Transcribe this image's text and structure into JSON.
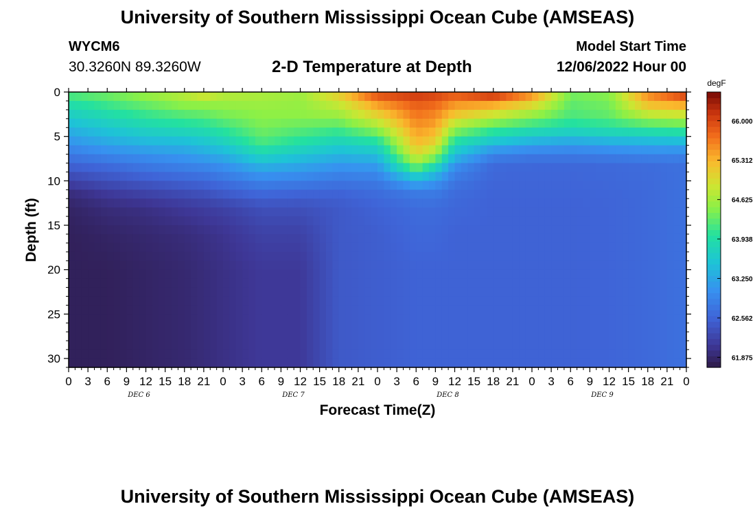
{
  "header": {
    "title": "University of Southern Mississippi Ocean Cube (AMSEAS)",
    "station_id": "WYCM6",
    "station_coords": "30.3260N  89.3260W",
    "plot_title": "2-D Temperature at Depth",
    "model_start_label": "Model Start Time",
    "model_start_value": "12/06/2022 Hour 00"
  },
  "footer": {
    "title": "University of Southern Mississippi Ocean Cube (AMSEAS)"
  },
  "chart_data": {
    "type": "heatmap",
    "title": "2-D Temperature at Depth",
    "xlabel": "Forecast Time(Z)",
    "ylabel": "Depth (ft)",
    "x_tick_labels": [
      "0",
      "3",
      "6",
      "9",
      "12",
      "15",
      "18",
      "21",
      "0",
      "3",
      "6",
      "9",
      "12",
      "15",
      "18",
      "21",
      "0",
      "3",
      "6",
      "9",
      "12",
      "15",
      "18",
      "21",
      "0",
      "3",
      "6",
      "9",
      "12",
      "15",
      "18",
      "21",
      "0"
    ],
    "day_labels": [
      "DEC 6",
      "DEC 7",
      "DEC 8",
      "DEC 9"
    ],
    "x_range_hours": [
      0,
      96
    ],
    "y_range_ft": [
      0,
      31
    ],
    "y_ticks": [
      0,
      5,
      10,
      15,
      20,
      25,
      30
    ],
    "y_inverted": true,
    "colorbar": {
      "unit": "degF",
      "tick_labels": [
        "66.000",
        "65.312",
        "64.625",
        "63.938",
        "63.250",
        "62.562",
        "61.875"
      ],
      "tick_values": [
        66.0,
        65.312,
        64.625,
        63.938,
        63.25,
        62.562,
        61.875
      ],
      "range": [
        61.7,
        66.5
      ]
    },
    "key_hours": [
      0,
      6,
      12,
      18,
      21,
      24,
      30,
      36,
      42,
      48,
      54,
      57,
      60,
      66,
      72,
      78,
      84,
      90,
      96
    ],
    "depth_levels_ft": [
      0,
      1,
      2.5,
      4,
      5.5,
      7,
      8.5,
      10,
      11.5,
      13,
      16,
      20,
      25,
      31
    ],
    "temperature_profiles": [
      [
        64.3,
        64.0,
        63.7,
        63.4,
        63.1,
        62.8,
        62.5,
        62.2,
        61.95,
        61.85,
        61.8,
        61.8,
        61.8,
        61.8
      ],
      [
        64.4,
        64.2,
        63.9,
        63.6,
        63.3,
        62.95,
        62.6,
        62.35,
        62.1,
        61.95,
        61.85,
        61.8,
        61.8,
        61.8
      ],
      [
        64.6,
        64.4,
        64.1,
        63.8,
        63.45,
        63.05,
        62.75,
        62.45,
        62.2,
        62.0,
        61.9,
        61.85,
        61.85,
        61.85
      ],
      [
        64.8,
        64.6,
        64.25,
        63.9,
        63.5,
        63.15,
        62.85,
        62.55,
        62.3,
        62.1,
        61.95,
        61.9,
        61.9,
        61.9
      ],
      [
        65.1,
        64.6,
        64.3,
        63.95,
        63.6,
        63.25,
        62.9,
        62.6,
        62.35,
        62.15,
        62.0,
        61.95,
        61.95,
        61.95
      ],
      [
        64.8,
        64.6,
        64.4,
        64.1,
        63.75,
        63.35,
        63.0,
        62.7,
        62.45,
        62.2,
        62.05,
        62.0,
        62.0,
        62.0
      ],
      [
        64.7,
        64.6,
        64.5,
        64.4,
        64.2,
        63.8,
        63.3,
        62.9,
        62.6,
        62.35,
        62.2,
        62.1,
        62.1,
        62.1
      ],
      [
        64.6,
        64.55,
        64.5,
        64.3,
        64.0,
        63.6,
        63.2,
        62.85,
        62.55,
        62.35,
        62.2,
        62.1,
        62.1,
        62.1
      ],
      [
        65.2,
        64.9,
        64.6,
        64.2,
        63.8,
        63.4,
        63.05,
        62.75,
        62.55,
        62.45,
        62.45,
        62.45,
        62.45,
        62.45
      ],
      [
        66.1,
        65.6,
        65.1,
        64.6,
        64.0,
        63.5,
        63.1,
        62.8,
        62.65,
        62.55,
        62.5,
        62.5,
        62.5,
        62.5
      ],
      [
        66.2,
        65.9,
        65.7,
        65.5,
        65.3,
        65.0,
        64.3,
        63.3,
        62.8,
        62.65,
        62.6,
        62.55,
        62.55,
        62.55
      ],
      [
        66.1,
        65.85,
        65.6,
        65.4,
        65.1,
        64.6,
        63.8,
        63.1,
        62.8,
        62.65,
        62.6,
        62.55,
        62.55,
        62.55
      ],
      [
        66.0,
        65.6,
        65.2,
        64.6,
        64.0,
        63.5,
        63.0,
        62.75,
        62.65,
        62.6,
        62.55,
        62.55,
        62.55,
        62.55
      ],
      [
        66.4,
        65.6,
        64.9,
        64.2,
        63.6,
        62.9,
        62.62,
        62.58,
        62.56,
        62.55,
        62.55,
        62.55,
        62.55,
        62.55
      ],
      [
        65.7,
        65.2,
        64.6,
        64.0,
        63.4,
        62.8,
        62.6,
        62.58,
        62.56,
        62.55,
        62.55,
        62.55,
        62.55,
        62.55
      ],
      [
        64.4,
        64.3,
        64.2,
        63.9,
        63.3,
        62.8,
        62.6,
        62.58,
        62.56,
        62.55,
        62.55,
        62.55,
        62.55,
        62.55
      ],
      [
        64.5,
        64.4,
        64.3,
        64.0,
        63.4,
        62.85,
        62.62,
        62.6,
        62.58,
        62.57,
        62.57,
        62.57,
        62.57,
        62.57
      ],
      [
        65.6,
        65.4,
        64.8,
        64.1,
        63.45,
        62.9,
        62.65,
        62.63,
        62.62,
        62.62,
        62.62,
        62.62,
        62.62,
        62.62
      ],
      [
        66.3,
        65.6,
        64.9,
        64.2,
        63.5,
        62.9,
        62.7,
        62.7,
        62.7,
        62.7,
        62.7,
        62.7,
        62.7,
        62.7
      ]
    ]
  }
}
